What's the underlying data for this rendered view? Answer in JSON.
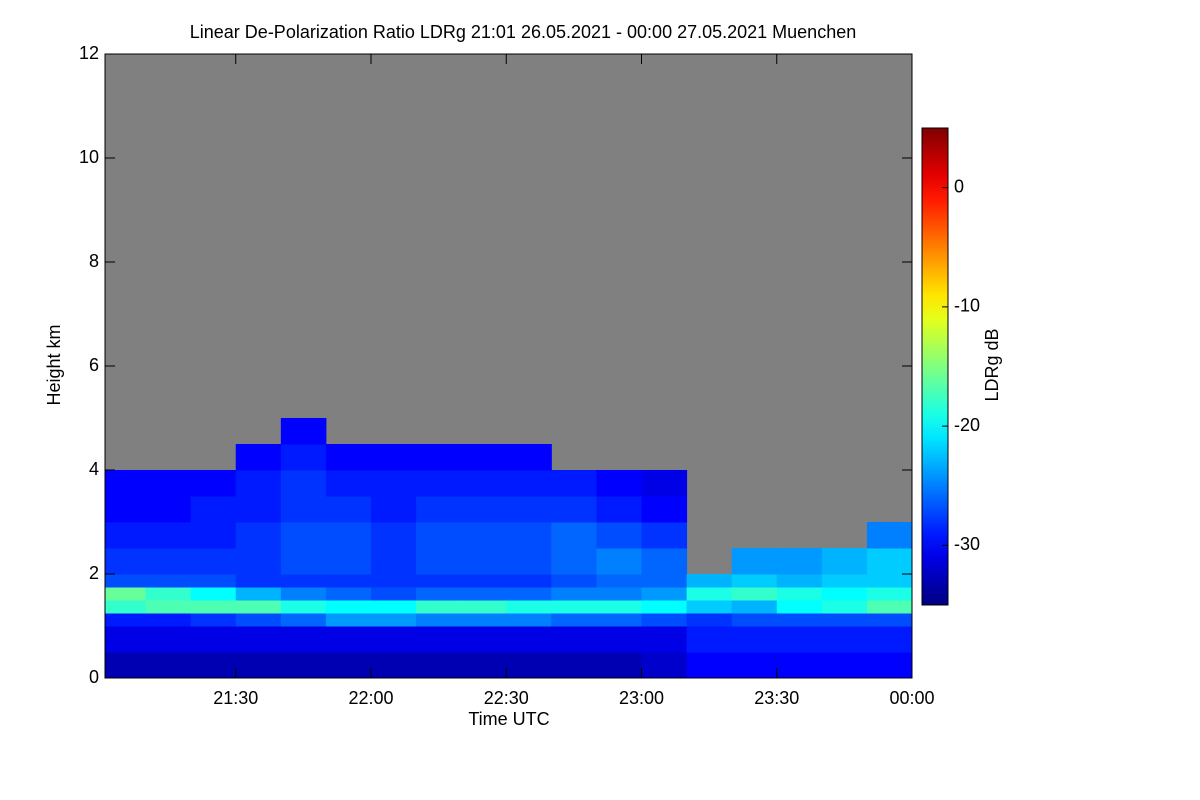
{
  "chart_data": {
    "type": "heatmap",
    "title": "Linear De-Polarization Ratio LDRg   21:01 26.05.2021 - 00:00 27.05.2021 Muenchen",
    "xlabel": "Time UTC",
    "ylabel": "Height km",
    "colorbar_label": "LDRg dB",
    "xlim": [
      21.0167,
      24
    ],
    "ylim": [
      0,
      12
    ],
    "xticks": [
      {
        "value": 21.5,
        "label": "21:30"
      },
      {
        "value": 22,
        "label": "22:00"
      },
      {
        "value": 22.5,
        "label": "22:30"
      },
      {
        "value": 23,
        "label": "23:00"
      },
      {
        "value": 23.5,
        "label": "23:30"
      },
      {
        "value": 24,
        "label": "00:00"
      }
    ],
    "yticks": [
      0,
      2,
      4,
      6,
      8,
      10,
      12
    ],
    "zlim": [
      -35,
      5
    ],
    "zticks": [
      -30,
      -20,
      -10,
      0
    ],
    "colormap": "jet",
    "missing_color": "#808080",
    "x_edges": [
      21.0167,
      21.1667,
      21.3333,
      21.5,
      21.6667,
      21.8333,
      22,
      22.1667,
      22.3333,
      22.5,
      22.6667,
      22.8333,
      23,
      23.1667,
      23.3333,
      23.5,
      23.6667,
      23.8333,
      24
    ],
    "y_edges": [
      0,
      0.5,
      1.0,
      1.25,
      1.5,
      1.75,
      2.0,
      2.5,
      3.0,
      3.5,
      4.0,
      4.5,
      5.0
    ],
    "z": [
      [
        -33,
        -31,
        -29,
        -18,
        -16,
        -27,
        -28,
        -29,
        -30,
        -30,
        null,
        null
      ],
      [
        -33,
        -31,
        -29,
        -17,
        -18,
        -27,
        -28,
        -29,
        -30,
        -30,
        null,
        null
      ],
      [
        -33,
        -31,
        -28,
        -17,
        -20,
        -27,
        -28,
        -29,
        -29,
        -30,
        null,
        null
      ],
      [
        -33,
        -31,
        -27,
        -17,
        -23,
        -28,
        -28,
        -28,
        -29,
        -29,
        -30,
        null
      ],
      [
        -33,
        -31,
        -26,
        -19,
        -25,
        -28,
        -27,
        -27,
        -28,
        -28,
        -29,
        -30
      ],
      [
        -33,
        -31,
        -24,
        -20,
        -26,
        -28,
        -27,
        -27,
        -28,
        -29,
        -30,
        null
      ],
      [
        -33,
        -31,
        -24,
        -20,
        -27,
        -28,
        -28,
        -28,
        -29,
        -29,
        -30,
        null
      ],
      [
        -33,
        -31,
        -25,
        -18,
        -26,
        -28,
        -27,
        -27,
        -28,
        -29,
        -30,
        null
      ],
      [
        -33,
        -31,
        -25,
        -18,
        -26,
        -28,
        -27,
        -27,
        -28,
        -29,
        -30,
        null
      ],
      [
        -33,
        -31,
        -25,
        -19,
        -26,
        -28,
        -27,
        -27,
        -28,
        -29,
        -30,
        null
      ],
      [
        -33,
        -31,
        -26,
        -19,
        -25,
        -27,
        -26,
        -26,
        -28,
        -29,
        null,
        null
      ],
      [
        -33,
        -31,
        -26,
        -19,
        -25,
        -26,
        -25,
        -27,
        -29,
        -30,
        null,
        null
      ],
      [
        -32,
        -31,
        -27,
        -20,
        -24,
        -26,
        -26,
        -28,
        -30,
        -31,
        null,
        null
      ],
      [
        -30,
        -29,
        -28,
        -22,
        -19,
        -23,
        null,
        null,
        null,
        null,
        null,
        null
      ],
      [
        -30,
        -29,
        -27,
        -23,
        -18,
        -22,
        -24,
        null,
        null,
        null,
        null,
        null
      ],
      [
        -30,
        -29,
        -27,
        -20,
        -19,
        -23,
        -24,
        null,
        null,
        null,
        null,
        null
      ],
      [
        -30,
        -29,
        -27,
        -19,
        -20,
        -22,
        -23,
        null,
        null,
        null,
        null,
        null
      ],
      [
        -30,
        -29,
        -27,
        -17,
        -19,
        -22,
        -22,
        -25,
        null,
        null,
        null,
        null
      ]
    ]
  }
}
